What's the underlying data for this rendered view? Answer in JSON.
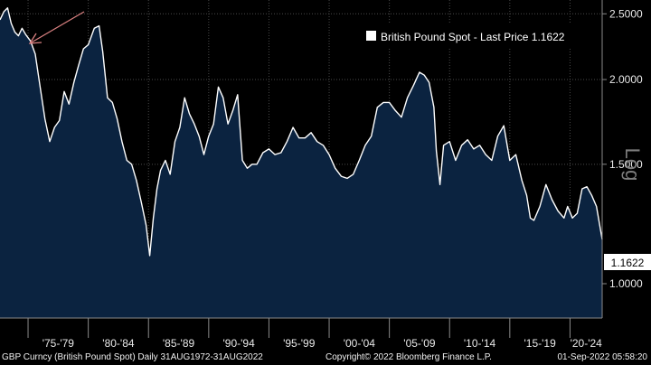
{
  "chart_data": {
    "type": "area",
    "title": "British Pound Spot - Last Price",
    "legend_value": "1.1622",
    "last_price_label": "1.1622",
    "last_price": 1.1622,
    "y_scale_label": "Log",
    "y_ticks": [
      1.0,
      1.5,
      2.0,
      2.5
    ],
    "y_tick_labels": [
      "1.0000",
      "1.5000",
      "2.0000",
      "2.5000"
    ],
    "ylim": [
      0.89,
      2.62
    ],
    "xlim": [
      1972.67,
      2022.67
    ],
    "x_tick_positions": [
      1975,
      1980,
      1985,
      1990,
      1995,
      2000,
      2005,
      2010,
      2015,
      2020
    ],
    "x_range_labels": [
      "'75-'79",
      "'80-'84",
      "'85-'89",
      "'90-'94",
      "'95-'99",
      "'00-'04",
      "'05-'09",
      "'10-'14",
      "'15-'19",
      "'20-'24"
    ],
    "legend_position": "top-right",
    "series": [
      {
        "name": "British Pound Spot",
        "x": [
          1972.67,
          1973.0,
          1973.3,
          1973.6,
          1973.9,
          1974.2,
          1974.5,
          1974.8,
          1975.2,
          1975.6,
          1976.0,
          1976.4,
          1976.8,
          1977.2,
          1977.6,
          1978.0,
          1978.4,
          1978.8,
          1979.2,
          1979.6,
          1980.0,
          1980.5,
          1980.9,
          1981.2,
          1981.6,
          1982.0,
          1982.4,
          1982.8,
          1983.2,
          1983.6,
          1984.0,
          1984.4,
          1984.8,
          1985.1,
          1985.4,
          1985.7,
          1986.0,
          1986.4,
          1986.8,
          1987.2,
          1987.6,
          1988.0,
          1988.4,
          1988.8,
          1989.2,
          1989.6,
          1990.0,
          1990.4,
          1990.8,
          1991.2,
          1991.6,
          1992.0,
          1992.4,
          1992.8,
          1993.2,
          1993.6,
          1994.0,
          1994.5,
          1995.0,
          1995.5,
          1996.0,
          1996.5,
          1997.0,
          1997.5,
          1998.0,
          1998.5,
          1999.0,
          1999.5,
          2000.0,
          2000.5,
          2001.0,
          2001.5,
          2002.0,
          2002.5,
          2003.0,
          2003.5,
          2004.0,
          2004.5,
          2005.0,
          2005.5,
          2006.0,
          2006.5,
          2007.0,
          2007.5,
          2007.9,
          2008.3,
          2008.7,
          2008.9,
          2009.2,
          2009.5,
          2010.0,
          2010.5,
          2011.0,
          2011.5,
          2012.0,
          2012.5,
          2013.0,
          2013.5,
          2014.0,
          2014.5,
          2015.0,
          2015.5,
          2016.0,
          2016.4,
          2016.7,
          2017.0,
          2017.5,
          2018.0,
          2018.5,
          2019.0,
          2019.5,
          2019.8,
          2020.2,
          2020.6,
          2021.0,
          2021.4,
          2021.8,
          2022.2,
          2022.67
        ],
        "values": [
          2.45,
          2.52,
          2.55,
          2.42,
          2.35,
          2.32,
          2.38,
          2.33,
          2.28,
          2.18,
          1.95,
          1.75,
          1.62,
          1.7,
          1.74,
          1.92,
          1.84,
          1.98,
          2.1,
          2.22,
          2.25,
          2.38,
          2.4,
          2.2,
          1.88,
          1.85,
          1.75,
          1.62,
          1.52,
          1.5,
          1.42,
          1.32,
          1.22,
          1.1,
          1.25,
          1.38,
          1.47,
          1.52,
          1.45,
          1.62,
          1.7,
          1.88,
          1.78,
          1.72,
          1.65,
          1.55,
          1.65,
          1.72,
          1.95,
          1.88,
          1.72,
          1.8,
          1.9,
          1.52,
          1.48,
          1.5,
          1.5,
          1.56,
          1.58,
          1.55,
          1.56,
          1.62,
          1.7,
          1.64,
          1.64,
          1.67,
          1.62,
          1.6,
          1.55,
          1.48,
          1.44,
          1.43,
          1.45,
          1.52,
          1.6,
          1.65,
          1.82,
          1.85,
          1.85,
          1.8,
          1.76,
          1.88,
          1.96,
          2.05,
          2.03,
          1.98,
          1.82,
          1.57,
          1.4,
          1.6,
          1.62,
          1.52,
          1.6,
          1.63,
          1.58,
          1.6,
          1.55,
          1.52,
          1.65,
          1.71,
          1.52,
          1.55,
          1.42,
          1.35,
          1.25,
          1.24,
          1.3,
          1.4,
          1.33,
          1.28,
          1.25,
          1.3,
          1.25,
          1.27,
          1.38,
          1.39,
          1.35,
          1.3,
          1.1622
        ]
      }
    ]
  },
  "footer": {
    "left": "GBP Curncy (British Pound Spot)  Daily 31AUG1972-31AUG2022",
    "center": "Copyright© 2022 Bloomberg Finance L.P.",
    "right": "01-Sep-2022 05:58:20"
  }
}
